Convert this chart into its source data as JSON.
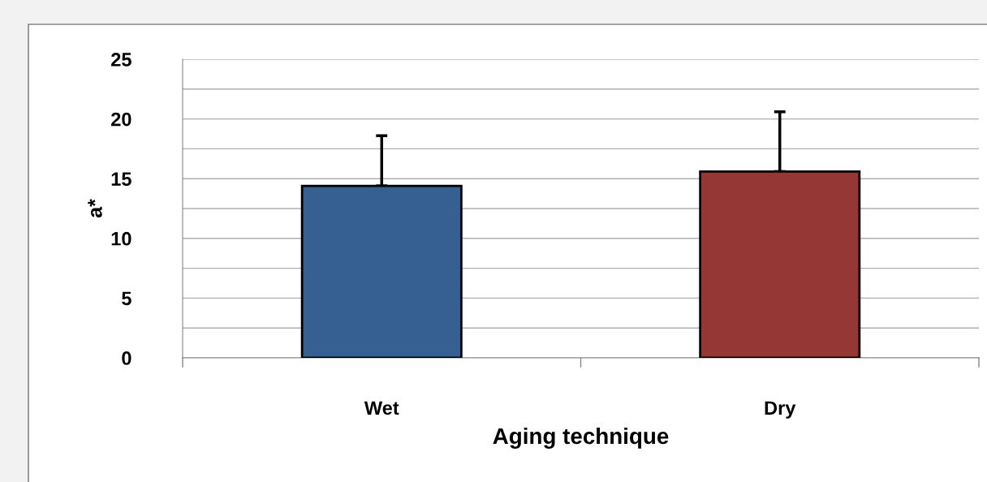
{
  "chart_data": {
    "type": "bar",
    "xlabel": "Aging technique",
    "ylabel": "a*",
    "categories": [
      "Wet",
      "Dry"
    ],
    "values": [
      14.4,
      15.6
    ],
    "colors": [
      "#376092",
      "#953735"
    ],
    "errors": [
      [
        14.4,
        18.6
      ],
      [
        15.6,
        20.6
      ]
    ],
    "ylim": [
      0,
      25
    ],
    "yticks": [
      0,
      {
        "value": 2.5,
        "label": null
      },
      5,
      {
        "value": 7.5,
        "label": null
      },
      10,
      {
        "value": 12.5,
        "label": null
      },
      15,
      {
        "value": 17.5,
        "label": null
      },
      20,
      {
        "value": 22.5,
        "label": null
      },
      25
    ],
    "grid": "y"
  }
}
